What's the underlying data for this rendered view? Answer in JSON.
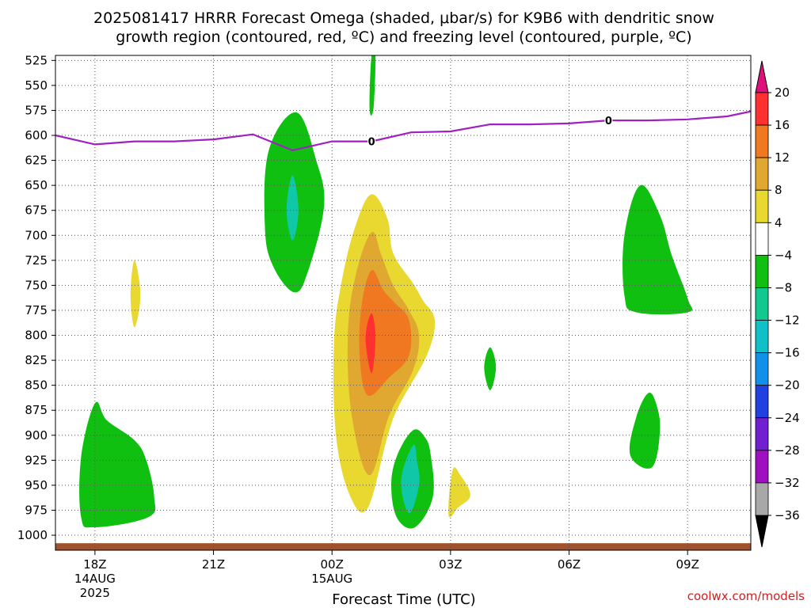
{
  "chart_data": {
    "type": "heatmap",
    "title_line1": "2025081417 HRRR Forecast Omega (shaded, μbar/s) for K9B6 with dendritic snow",
    "title_line2": "growth region (contoured, red, ºC) and freezing level (contoured, purple, ºC)",
    "xlabel": "Forecast Time (UTC)",
    "credit": "coolwx.com/models",
    "x_ticks": [
      {
        "label": "18Z",
        "hour": 18,
        "sub1": "14AUG",
        "sub2": "2025"
      },
      {
        "label": "21Z",
        "hour": 21,
        "sub1": "",
        "sub2": ""
      },
      {
        "label": "00Z",
        "hour": 24,
        "sub1": "15AUG",
        "sub2": ""
      },
      {
        "label": "03Z",
        "hour": 27,
        "sub1": "",
        "sub2": ""
      },
      {
        "label": "06Z",
        "hour": 30,
        "sub1": "",
        "sub2": ""
      },
      {
        "label": "09Z",
        "hour": 33,
        "sub1": "",
        "sub2": ""
      }
    ],
    "xlim": [
      17,
      34.6
    ],
    "y_ticks": [
      525,
      550,
      575,
      600,
      625,
      650,
      675,
      700,
      725,
      750,
      775,
      800,
      825,
      850,
      875,
      900,
      925,
      950,
      975,
      1000
    ],
    "ylim": [
      520,
      1015
    ],
    "grid": true,
    "colorbar": {
      "levels": [
        "20",
        "16",
        "12",
        "8",
        "4",
        "−4",
        "−8",
        "−12",
        "−16",
        "−20",
        "−24",
        "−28",
        "−32",
        "−36"
      ],
      "colors": [
        "#ff3030",
        "#f07820",
        "#e0a830",
        "#e8d830",
        "#ffffff",
        "#10c010",
        "#10c890",
        "#10c0c8",
        "#1090e8",
        "#2040e0",
        "#7020d0",
        "#a010c0",
        "#a8a8a8"
      ],
      "top_arrow_color": "#e0107a",
      "bottom_arrow_color": "#000000"
    },
    "freezing_level": {
      "label": "0",
      "color": "#a020c0",
      "points": [
        [
          17,
          600
        ],
        [
          18,
          609
        ],
        [
          19,
          606
        ],
        [
          20,
          606
        ],
        [
          21,
          604
        ],
        [
          22,
          599
        ],
        [
          23,
          615
        ],
        [
          24,
          606
        ],
        [
          25,
          606
        ],
        [
          26,
          597
        ],
        [
          27,
          596
        ],
        [
          28,
          589
        ],
        [
          29,
          589
        ],
        [
          30,
          588
        ],
        [
          31,
          585
        ],
        [
          32,
          585
        ],
        [
          33,
          584
        ],
        [
          34,
          581
        ],
        [
          34.6,
          576
        ]
      ],
      "label_positions": [
        [
          25,
          606
        ],
        [
          31,
          585
        ]
      ]
    },
    "omega_regions": [
      {
        "value_band": "-4 to -8",
        "color": "#10c010",
        "points": [
          [
            25,
            520
          ],
          [
            25.1,
            520
          ],
          [
            25.05,
            573
          ],
          [
            24.95,
            573
          ]
        ]
      },
      {
        "value_band": "-4 to -8",
        "color": "#10c010",
        "points": [
          [
            23.1,
            577
          ],
          [
            22.4,
            615
          ],
          [
            22.3,
            690
          ],
          [
            22.5,
            730
          ],
          [
            23.05,
            757
          ],
          [
            23.4,
            735
          ],
          [
            23.8,
            670
          ],
          [
            23.6,
            625
          ]
        ]
      },
      {
        "value_band": "-8 to -12",
        "color": "#10c8a8",
        "points": [
          [
            23.0,
            640
          ],
          [
            22.85,
            675
          ],
          [
            23.0,
            705
          ],
          [
            23.15,
            675
          ]
        ]
      },
      {
        "value_band": "-4 to -8",
        "color": "#10c010",
        "points": [
          [
            18.0,
            868
          ],
          [
            17.65,
            922
          ],
          [
            17.65,
            982
          ],
          [
            18.0,
            992
          ],
          [
            19.35,
            982
          ],
          [
            19.5,
            962
          ],
          [
            19.3,
            925
          ],
          [
            19.0,
            905
          ],
          [
            18.3,
            885
          ]
        ]
      },
      {
        "value_band": "4 to 8",
        "color": "#e8d830",
        "points": [
          [
            19.0,
            725
          ],
          [
            18.9,
            760
          ],
          [
            19.0,
            792
          ],
          [
            19.15,
            760
          ]
        ]
      },
      {
        "value_band": "4 to 8",
        "color": "#e8d830",
        "points": [
          [
            25.0,
            659
          ],
          [
            24.6,
            690
          ],
          [
            24.25,
            745
          ],
          [
            24.05,
            808
          ],
          [
            24.1,
            900
          ],
          [
            24.45,
            960
          ],
          [
            24.9,
            973
          ],
          [
            25.4,
            902
          ],
          [
            25.7,
            870
          ],
          [
            26.4,
            820
          ],
          [
            26.6,
            785
          ],
          [
            26.3,
            765
          ],
          [
            26.05,
            748
          ],
          [
            25.55,
            718
          ],
          [
            25.4,
            683
          ]
        ]
      },
      {
        "value_band": "8 to 12",
        "color": "#e0a830",
        "points": [
          [
            25.0,
            697
          ],
          [
            24.6,
            740
          ],
          [
            24.4,
            800
          ],
          [
            24.5,
            880
          ],
          [
            24.95,
            940
          ],
          [
            25.45,
            880
          ],
          [
            26.05,
            835
          ],
          [
            26.2,
            800
          ],
          [
            25.95,
            775
          ],
          [
            25.55,
            750
          ],
          [
            25.25,
            720
          ]
        ]
      },
      {
        "value_band": "12 to 16",
        "color": "#f07820",
        "points": [
          [
            25.0,
            735
          ],
          [
            24.75,
            770
          ],
          [
            24.7,
            820
          ],
          [
            24.9,
            860
          ],
          [
            25.45,
            842
          ],
          [
            25.95,
            820
          ],
          [
            25.95,
            785
          ],
          [
            25.6,
            768
          ],
          [
            25.3,
            755
          ]
        ]
      },
      {
        "value_band": "16 to 20",
        "color": "#ff3030",
        "points": [
          [
            25.0,
            778
          ],
          [
            24.85,
            803
          ],
          [
            25.0,
            838
          ],
          [
            25.1,
            803
          ]
        ]
      },
      {
        "value_band": "-4 to -8",
        "color": "#10c010",
        "points": [
          [
            26.05,
            895
          ],
          [
            25.65,
            920
          ],
          [
            25.5,
            950
          ],
          [
            25.65,
            983
          ],
          [
            26.1,
            992
          ],
          [
            26.55,
            962
          ],
          [
            26.5,
            920
          ],
          [
            26.35,
            902
          ]
        ]
      },
      {
        "value_band": "-8 to -12",
        "color": "#10c8a8",
        "points": [
          [
            26.05,
            910
          ],
          [
            25.75,
            945
          ],
          [
            25.95,
            978
          ],
          [
            26.2,
            950
          ],
          [
            26.15,
            925
          ]
        ]
      },
      {
        "value_band": "4 to 8",
        "color": "#e8d830",
        "points": [
          [
            27.05,
            935
          ],
          [
            26.95,
            980
          ],
          [
            27.2,
            972
          ],
          [
            27.5,
            960
          ],
          [
            27.25,
            940
          ]
        ]
      },
      {
        "value_band": "-4 to -8",
        "color": "#10c010",
        "points": [
          [
            28.0,
            812
          ],
          [
            27.85,
            832
          ],
          [
            28.0,
            855
          ],
          [
            28.15,
            832
          ]
        ]
      },
      {
        "value_band": "-4 to -8",
        "color": "#10c010",
        "points": [
          [
            31.8,
            650
          ],
          [
            31.4,
            700
          ],
          [
            31.4,
            760
          ],
          [
            31.7,
            777
          ],
          [
            33.0,
            777
          ],
          [
            33.0,
            763
          ],
          [
            32.6,
            720
          ],
          [
            32.3,
            680
          ]
        ]
      },
      {
        "value_band": "-4 to -8",
        "color": "#10c010",
        "points": [
          [
            32.0,
            858
          ],
          [
            31.7,
            882
          ],
          [
            31.55,
            920
          ],
          [
            32.1,
            932
          ],
          [
            32.3,
            895
          ],
          [
            32.2,
            868
          ]
        ]
      }
    ],
    "terrain": {
      "color": "#a0522d",
      "pressure": 1015,
      "top_pressure": 1008
    }
  }
}
